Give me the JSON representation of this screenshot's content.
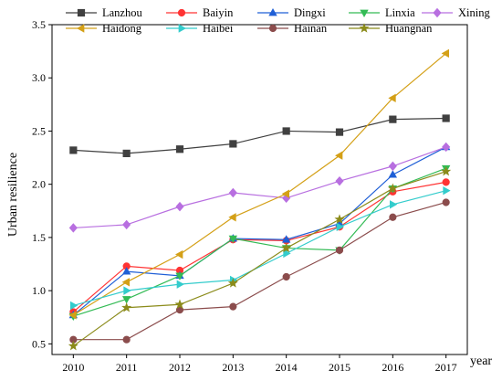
{
  "chart_data": {
    "type": "line",
    "title": "",
    "xlabel": "year",
    "ylabel": "Urban resilience",
    "x": [
      2010,
      2011,
      2012,
      2013,
      2014,
      2015,
      2016,
      2017
    ],
    "x_tick_labels": [
      "2010",
      "2011",
      "2012",
      "2013",
      "2014",
      "2015",
      "2016",
      "2017"
    ],
    "ylim": [
      0.4,
      3.5
    ],
    "y_ticks": [
      0.5,
      1.0,
      1.5,
      2.0,
      2.5,
      3.0,
      3.5
    ],
    "y_tick_labels": [
      "0.5",
      "1.0",
      "1.5",
      "2.0",
      "2.5",
      "3.0",
      "3.5"
    ],
    "grid": false,
    "legend_position": "top",
    "series": [
      {
        "name": "Lanzhou",
        "color": "#404040",
        "marker": "square",
        "values": [
          2.32,
          2.29,
          2.33,
          2.38,
          2.5,
          2.49,
          2.61,
          2.62
        ]
      },
      {
        "name": "Baiyin",
        "color": "#ff3333",
        "marker": "circle",
        "values": [
          0.8,
          1.23,
          1.19,
          1.48,
          1.47,
          1.6,
          1.93,
          2.02
        ]
      },
      {
        "name": "Dingxi",
        "color": "#1f5fd6",
        "marker": "triangle-up",
        "values": [
          0.77,
          1.18,
          1.14,
          1.49,
          1.48,
          1.63,
          2.09,
          2.35
        ]
      },
      {
        "name": "Linxia",
        "color": "#33bb55",
        "marker": "triangle-down",
        "values": [
          0.76,
          0.92,
          1.14,
          1.49,
          1.4,
          1.38,
          1.96,
          2.15
        ]
      },
      {
        "name": "Xining",
        "color": "#b86fe0",
        "marker": "diamond",
        "values": [
          1.59,
          1.62,
          1.79,
          1.92,
          1.87,
          2.03,
          2.17,
          2.35
        ]
      },
      {
        "name": "Haidong",
        "color": "#d4a017",
        "marker": "triangle-left",
        "values": [
          0.77,
          1.08,
          1.34,
          1.69,
          1.91,
          2.27,
          2.81,
          3.23
        ]
      },
      {
        "name": "Haibei",
        "color": "#33cccc",
        "marker": "triangle-right",
        "values": [
          0.86,
          1.0,
          1.06,
          1.1,
          1.35,
          1.6,
          1.81,
          1.94
        ]
      },
      {
        "name": "Hainan",
        "color": "#8b4c4c",
        "marker": "circle",
        "values": [
          0.54,
          0.54,
          0.82,
          0.85,
          1.13,
          1.38,
          1.69,
          1.83
        ]
      },
      {
        "name": "Huangnan",
        "color": "#8b8b1a",
        "marker": "star",
        "values": [
          0.48,
          0.84,
          0.87,
          1.07,
          1.4,
          1.67,
          1.96,
          2.12
        ]
      }
    ]
  }
}
